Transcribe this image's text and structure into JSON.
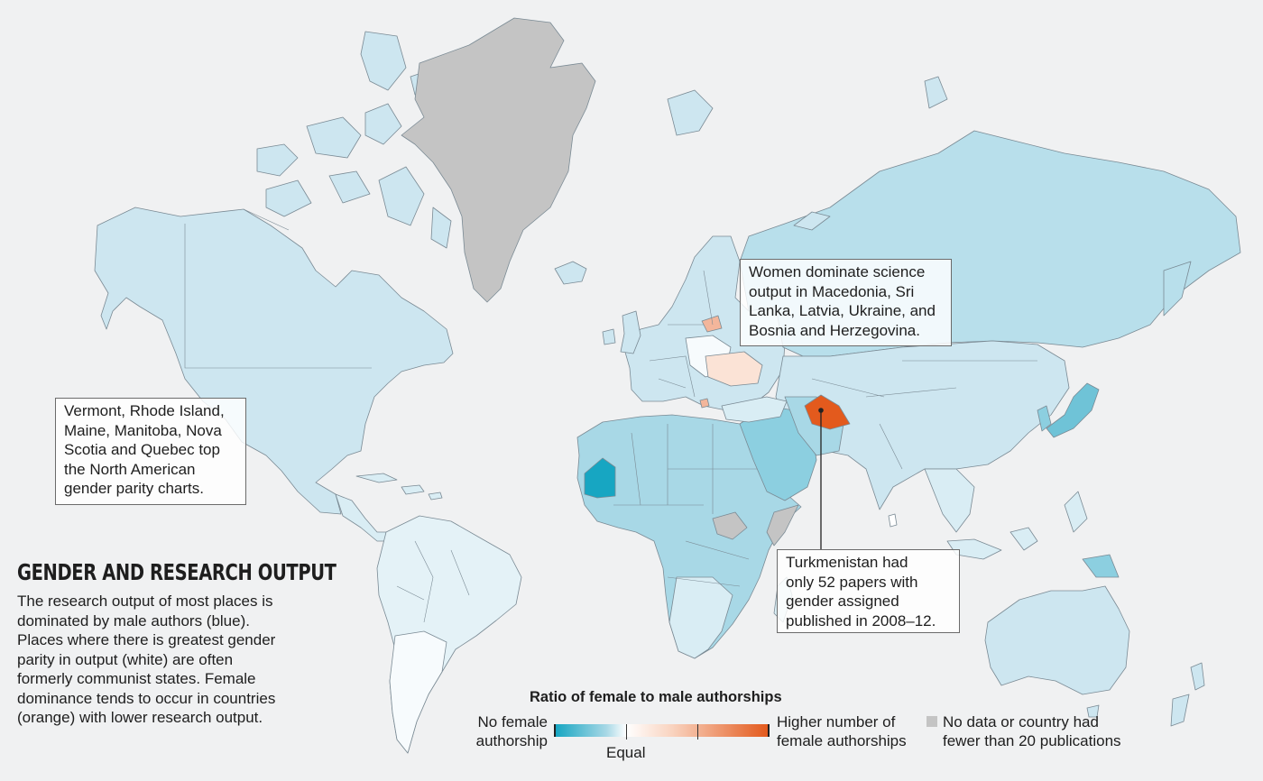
{
  "title": "GENDER AND RESEARCH OUTPUT",
  "description": "The research output of most places is\ndominated by male authors (blue).\nPlaces where there is greatest gender\nparity in output (white) are often\nformerly communist states. Female\ndominance tends to occur in countries\n(orange) with lower research output.",
  "callouts": {
    "north_america": "Vermont, Rhode Island,\nMaine, Manitoba, Nova\nScotia and Quebec top\nthe North American\ngender parity charts.",
    "europe": "Women dominate science\noutput in Macedonia, Sri\nLanka, Latvia, Ukraine, and\nBosnia and Herzegovina.",
    "turkmenistan": "Turkmenistan had\nonly 52 papers with\ngender assigned\npublished in 2008–12."
  },
  "legend": {
    "title": "Ratio of female to male authorships",
    "left_label": "No female\nauthorship",
    "center_label": "Equal",
    "right_label": "Higher number of\nfemale authorships",
    "no_data_label": "No data or country had\nfewer than 20 publications"
  },
  "colors": {
    "background": "#f0f1f2",
    "male_dominant_strong": "#17a6c2",
    "male_dominant": "#a8d8e6",
    "male_slight": "#cfe7f0",
    "parity": "#ffffff",
    "female_slight": "#f9d3bf",
    "female_dominant": "#e35a1d",
    "no_data": "#c4c4c4"
  }
}
